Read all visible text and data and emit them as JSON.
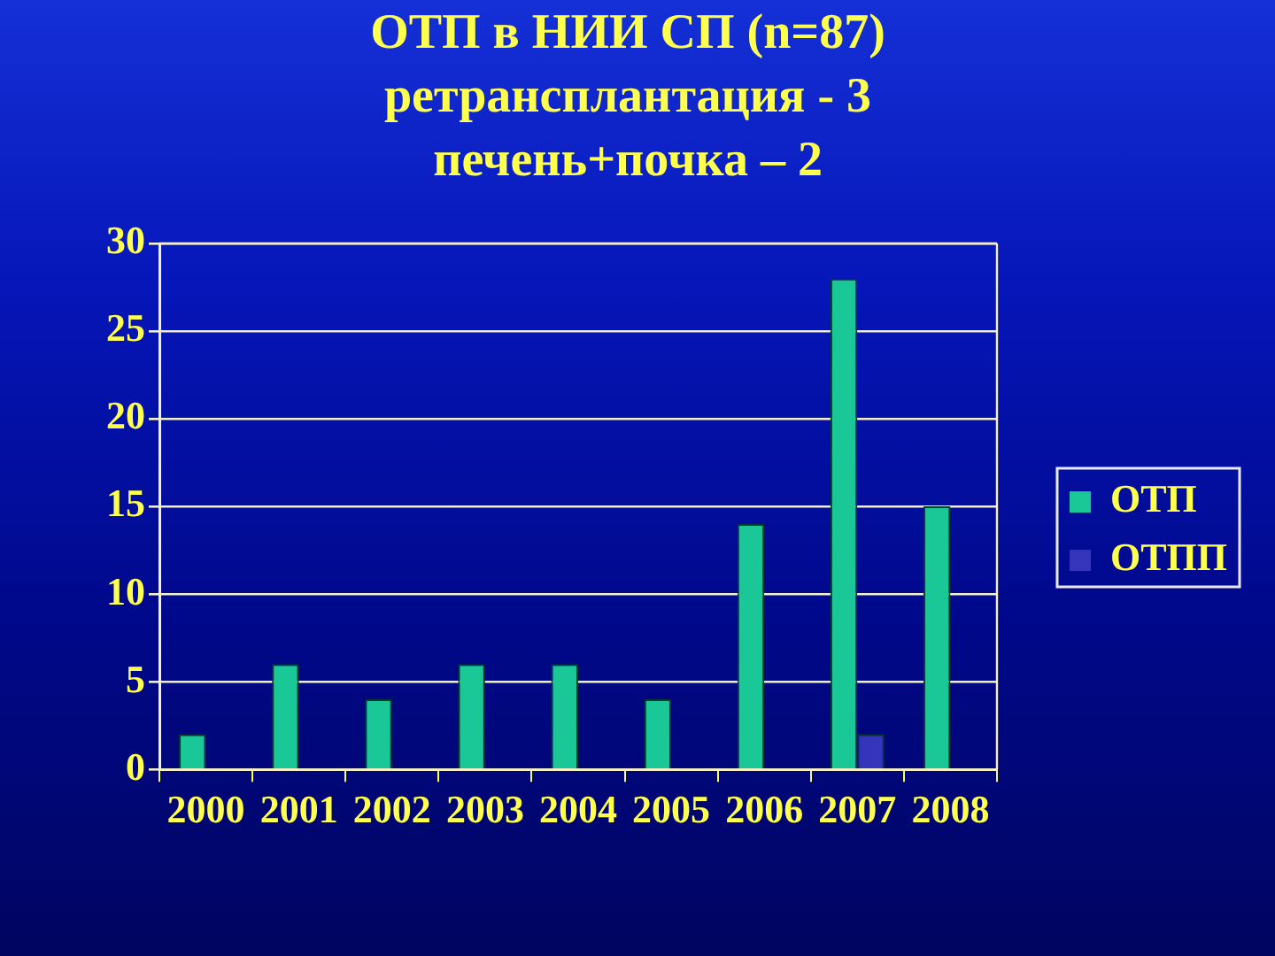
{
  "chart_data": {
    "type": "bar",
    "title": "ОТП в НИИ СП (n=87)\nретрансплантация - 3\nпечень+почка – 2",
    "categories": [
      "2000",
      "2001",
      "2002",
      "2003",
      "2004",
      "2005",
      "2006",
      "2007",
      "2008"
    ],
    "series": [
      {
        "name": "ОТП",
        "color": "#19c896",
        "values": [
          2,
          6,
          4,
          6,
          6,
          4,
          14,
          28,
          15
        ]
      },
      {
        "name": "ОТПП",
        "color": "#3535bb",
        "values": [
          null,
          null,
          null,
          null,
          null,
          null,
          null,
          2,
          null
        ]
      }
    ],
    "ylim": [
      0,
      30
    ],
    "yticks": [
      0,
      5,
      10,
      15,
      20,
      25,
      30
    ],
    "grid": "y",
    "legend": "right"
  }
}
